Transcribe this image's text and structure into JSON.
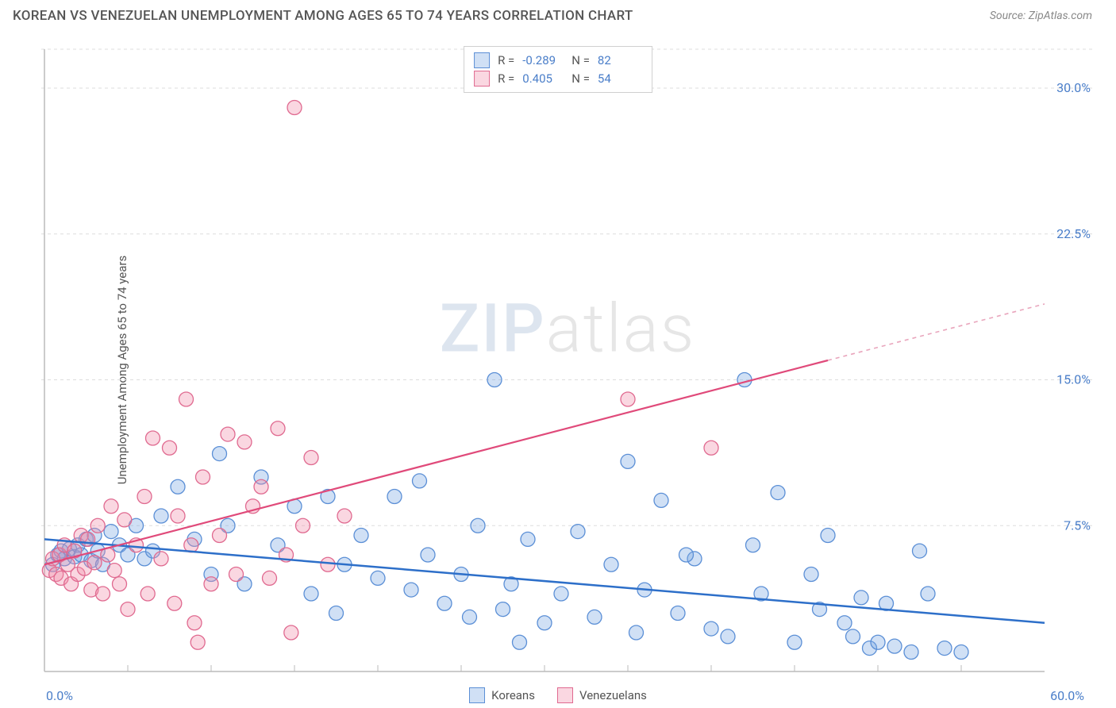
{
  "header": {
    "title": "KOREAN VS VENEZUELAN UNEMPLOYMENT AMONG AGES 65 TO 74 YEARS CORRELATION CHART",
    "source": "Source: ZipAtlas.com"
  },
  "chart": {
    "type": "scatter",
    "ylabel": "Unemployment Among Ages 65 to 74 years",
    "xlim": [
      0,
      60
    ],
    "ylim": [
      0,
      32
    ],
    "x_tick_labels": {
      "min": "0.0%",
      "max": "60.0%"
    },
    "y_tick_labels": [
      "7.5%",
      "15.0%",
      "22.5%",
      "30.0%"
    ],
    "y_tick_values": [
      7.5,
      15.0,
      22.5,
      30.0
    ],
    "x_minor_ticks": [
      5,
      10,
      15,
      20,
      25,
      30,
      35,
      40,
      45,
      50,
      55
    ],
    "grid_color": "#dddddd",
    "axis_color": "#bbbbbb",
    "background": "#ffffff",
    "tick_label_color": "#4a7ec9",
    "watermark": {
      "part1": "ZIP",
      "part2": "atlas"
    },
    "series": [
      {
        "name": "Koreans",
        "fill": "rgba(120,165,225,0.35)",
        "stroke": "#5b8fd6",
        "r_label": "R =",
        "n_label": "N =",
        "r": "-0.289",
        "n": "82",
        "trend": {
          "x1": 0,
          "y1": 6.8,
          "x2": 60,
          "y2": 2.5,
          "color": "#2d6fc9",
          "width": 2.5
        },
        "points": [
          [
            0.5,
            5.5
          ],
          [
            0.8,
            6.0
          ],
          [
            1.0,
            6.2
          ],
          [
            1.2,
            5.8
          ],
          [
            1.5,
            6.3
          ],
          [
            1.8,
            5.9
          ],
          [
            2.0,
            6.5
          ],
          [
            2.2,
            6.0
          ],
          [
            2.5,
            6.8
          ],
          [
            2.8,
            5.7
          ],
          [
            3.0,
            7.0
          ],
          [
            3.2,
            6.2
          ],
          [
            3.5,
            5.5
          ],
          [
            4.0,
            7.2
          ],
          [
            4.5,
            6.5
          ],
          [
            5.0,
            6.0
          ],
          [
            5.5,
            7.5
          ],
          [
            6.0,
            5.8
          ],
          [
            6.5,
            6.2
          ],
          [
            7.0,
            8.0
          ],
          [
            8.0,
            9.5
          ],
          [
            9.0,
            6.8
          ],
          [
            10.0,
            5.0
          ],
          [
            10.5,
            11.2
          ],
          [
            11.0,
            7.5
          ],
          [
            12.0,
            4.5
          ],
          [
            13.0,
            10.0
          ],
          [
            14.0,
            6.5
          ],
          [
            15.0,
            8.5
          ],
          [
            16.0,
            4.0
          ],
          [
            17.0,
            9.0
          ],
          [
            17.5,
            3.0
          ],
          [
            18.0,
            5.5
          ],
          [
            19.0,
            7.0
          ],
          [
            20.0,
            4.8
          ],
          [
            21.0,
            9.0
          ],
          [
            22.0,
            4.2
          ],
          [
            22.5,
            9.8
          ],
          [
            23.0,
            6.0
          ],
          [
            24.0,
            3.5
          ],
          [
            25.0,
            5.0
          ],
          [
            25.5,
            2.8
          ],
          [
            26.0,
            7.5
          ],
          [
            27.0,
            15.0
          ],
          [
            27.5,
            3.2
          ],
          [
            28.0,
            4.5
          ],
          [
            28.5,
            1.5
          ],
          [
            29.0,
            6.8
          ],
          [
            30.0,
            2.5
          ],
          [
            31.0,
            4.0
          ],
          [
            32.0,
            7.2
          ],
          [
            33.0,
            2.8
          ],
          [
            34.0,
            5.5
          ],
          [
            35.0,
            10.8
          ],
          [
            35.5,
            2.0
          ],
          [
            36.0,
            4.2
          ],
          [
            37.0,
            8.8
          ],
          [
            38.0,
            3.0
          ],
          [
            39.0,
            5.8
          ],
          [
            40.0,
            2.2
          ],
          [
            41.0,
            1.8
          ],
          [
            42.0,
            15.0
          ],
          [
            42.5,
            6.5
          ],
          [
            43.0,
            4.0
          ],
          [
            44.0,
            9.2
          ],
          [
            45.0,
            1.5
          ],
          [
            46.0,
            5.0
          ],
          [
            47.0,
            7.0
          ],
          [
            48.0,
            2.5
          ],
          [
            49.0,
            3.8
          ],
          [
            49.5,
            1.2
          ],
          [
            50.0,
            1.5
          ],
          [
            50.5,
            3.5
          ],
          [
            51.0,
            1.3
          ],
          [
            52.0,
            1.0
          ],
          [
            52.5,
            6.2
          ],
          [
            54.0,
            1.2
          ],
          [
            55.0,
            1.0
          ],
          [
            53.0,
            4.0
          ],
          [
            48.5,
            1.8
          ],
          [
            46.5,
            3.2
          ],
          [
            38.5,
            6.0
          ]
        ]
      },
      {
        "name": "Venezuelans",
        "fill": "rgba(240,140,170,0.35)",
        "stroke": "#e06a90",
        "r_label": "R =",
        "n_label": "N =",
        "r": "0.405",
        "n": "54",
        "trend_solid": {
          "x1": 0,
          "y1": 5.5,
          "x2": 47,
          "y2": 16.0,
          "color": "#e04a7a",
          "width": 2.2
        },
        "trend_dash": {
          "x1": 47,
          "y1": 16.0,
          "x2": 60,
          "y2": 18.9,
          "color": "#e9a5bc",
          "width": 1.6
        },
        "points": [
          [
            0.3,
            5.2
          ],
          [
            0.5,
            5.8
          ],
          [
            0.7,
            5.0
          ],
          [
            0.9,
            6.0
          ],
          [
            1.0,
            4.8
          ],
          [
            1.2,
            6.5
          ],
          [
            1.4,
            5.5
          ],
          [
            1.6,
            4.5
          ],
          [
            1.8,
            6.2
          ],
          [
            2.0,
            5.0
          ],
          [
            2.2,
            7.0
          ],
          [
            2.4,
            5.3
          ],
          [
            2.6,
            6.8
          ],
          [
            2.8,
            4.2
          ],
          [
            3.0,
            5.6
          ],
          [
            3.2,
            7.5
          ],
          [
            3.5,
            4.0
          ],
          [
            3.8,
            6.0
          ],
          [
            4.0,
            8.5
          ],
          [
            4.2,
            5.2
          ],
          [
            4.5,
            4.5
          ],
          [
            4.8,
            7.8
          ],
          [
            5.0,
            3.2
          ],
          [
            5.5,
            6.5
          ],
          [
            6.0,
            9.0
          ],
          [
            6.2,
            4.0
          ],
          [
            6.5,
            12.0
          ],
          [
            7.0,
            5.8
          ],
          [
            7.5,
            11.5
          ],
          [
            8.0,
            8.0
          ],
          [
            8.5,
            14.0
          ],
          [
            8.8,
            6.5
          ],
          [
            9.0,
            2.5
          ],
          [
            9.5,
            10.0
          ],
          [
            10.0,
            4.5
          ],
          [
            10.5,
            7.0
          ],
          [
            11.0,
            12.2
          ],
          [
            11.5,
            5.0
          ],
          [
            12.0,
            11.8
          ],
          [
            12.5,
            8.5
          ],
          [
            13.0,
            9.5
          ],
          [
            13.5,
            4.8
          ],
          [
            14.0,
            12.5
          ],
          [
            14.5,
            6.0
          ],
          [
            15.0,
            29.0
          ],
          [
            15.5,
            7.5
          ],
          [
            16.0,
            11.0
          ],
          [
            17.0,
            5.5
          ],
          [
            18.0,
            8.0
          ],
          [
            14.8,
            2.0
          ],
          [
            35.0,
            14.0
          ],
          [
            40.0,
            11.5
          ],
          [
            9.2,
            1.5
          ],
          [
            7.8,
            3.5
          ]
        ]
      }
    ],
    "legend": {
      "label1": "Koreans",
      "label2": "Venezuelans"
    }
  }
}
